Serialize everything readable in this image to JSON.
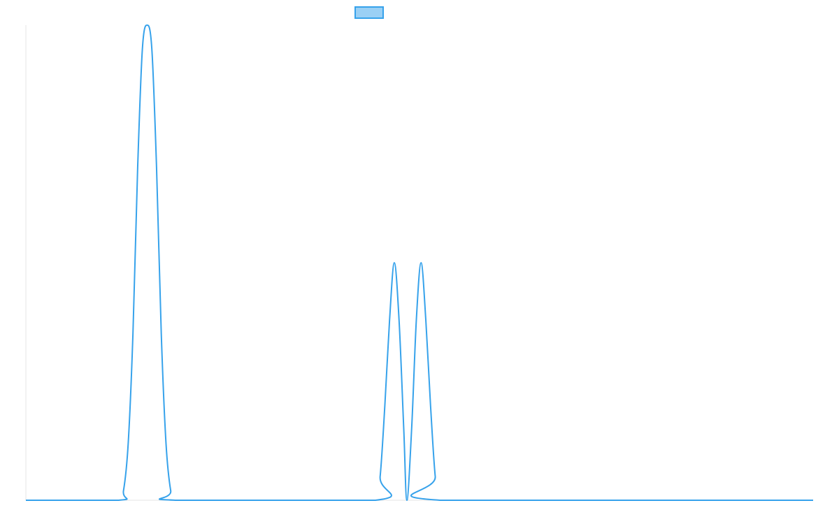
{
  "chart_data": {
    "type": "line",
    "title": "",
    "xlabel": "",
    "ylabel": "",
    "xlim": [
      0,
      100
    ],
    "ylim": [
      0,
      1
    ],
    "grid": false,
    "legend": {
      "placement": "top-center",
      "entries": [
        {
          "name": "",
          "color": "#36A2EB",
          "fill": "#9AD0F5"
        }
      ]
    },
    "series": [
      {
        "name": "",
        "color": "#36A2EB",
        "x": [
          0,
          11.8,
          12.4,
          13.0,
          13.6,
          14.2,
          14.8,
          15.4,
          16.0,
          16.6,
          17.2,
          17.8,
          18.4,
          19.0,
          44.4,
          45.0,
          45.6,
          46.2,
          46.8,
          47.4,
          48.0,
          48.4,
          49.0,
          49.6,
          50.2,
          50.8,
          51.4,
          52.0,
          52.6,
          100
        ],
        "y": [
          0,
          0,
          0.02,
          0.12,
          0.35,
          0.7,
          0.95,
          1.0,
          0.95,
          0.7,
          0.35,
          0.12,
          0.02,
          0,
          0,
          0.05,
          0.2,
          0.38,
          0.5,
          0.38,
          0.15,
          0,
          0.15,
          0.38,
          0.5,
          0.38,
          0.2,
          0.05,
          0,
          0
        ]
      }
    ]
  }
}
